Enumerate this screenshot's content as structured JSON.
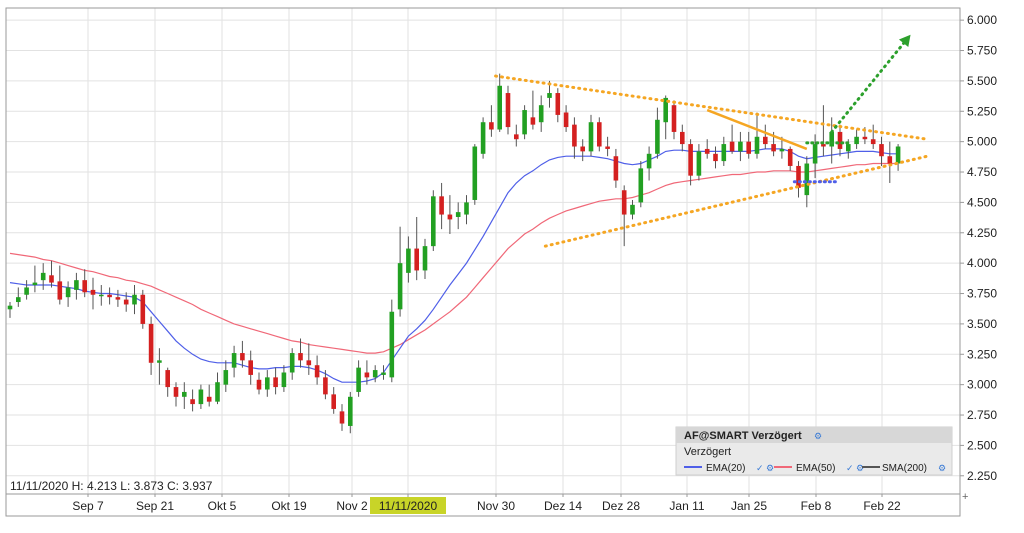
{
  "chart_data": {
    "type": "candlestick",
    "y_axis_position": "right",
    "ylim": [
      2.1,
      6.1
    ],
    "yticks": [
      "6.000",
      "5.750",
      "5.500",
      "5.250",
      "5.000",
      "4.750",
      "4.500",
      "4.250",
      "4.000",
      "3.750",
      "3.500",
      "3.250",
      "3.000",
      "2.750",
      "2.500",
      "2.250"
    ],
    "x_labels": [
      "Sep 7",
      "Sep 21",
      "Okt 5",
      "Okt 19",
      "Nov 2",
      "11/11/2020",
      "Nov 30",
      "Dez 14",
      "Dez 28",
      "Jan 11",
      "Jan 25",
      "Feb 8",
      "Feb 22"
    ],
    "highlighted_x_label": "11/11/2020",
    "grid": true,
    "colors": {
      "up": "#22a022",
      "down": "#d42020",
      "wick": "#555555",
      "ema20": "#4f5fe8",
      "ema50": "#f06878",
      "trendline": "#f5a623",
      "arrow": "#2ca02c",
      "highlight": "#c8d428"
    },
    "candles": [
      [
        3.62,
        3.68,
        3.55,
        3.65
      ],
      [
        3.68,
        3.8,
        3.64,
        3.72
      ],
      [
        3.74,
        3.86,
        3.7,
        3.8
      ],
      [
        3.82,
        3.98,
        3.76,
        3.84
      ],
      [
        3.86,
        4.0,
        3.78,
        3.92
      ],
      [
        3.9,
        4.02,
        3.8,
        3.84
      ],
      [
        3.85,
        3.98,
        3.66,
        3.7
      ],
      [
        3.72,
        3.85,
        3.64,
        3.8
      ],
      [
        3.78,
        3.92,
        3.7,
        3.86
      ],
      [
        3.86,
        3.95,
        3.72,
        3.76
      ],
      [
        3.78,
        3.88,
        3.62,
        3.74
      ],
      [
        3.74,
        3.82,
        3.65,
        3.74
      ],
      [
        3.74,
        3.8,
        3.66,
        3.72
      ],
      [
        3.72,
        3.78,
        3.64,
        3.7
      ],
      [
        3.7,
        3.76,
        3.6,
        3.66
      ],
      [
        3.66,
        3.82,
        3.58,
        3.74
      ],
      [
        3.74,
        3.78,
        3.46,
        3.5
      ],
      [
        3.5,
        3.56,
        3.08,
        3.18
      ],
      [
        3.18,
        3.3,
        3.0,
        3.2
      ],
      [
        3.12,
        3.14,
        2.9,
        2.98
      ],
      [
        2.98,
        3.02,
        2.82,
        2.9
      ],
      [
        2.9,
        3.02,
        2.8,
        2.94
      ],
      [
        2.88,
        2.96,
        2.78,
        2.84
      ],
      [
        2.84,
        3.0,
        2.8,
        2.96
      ],
      [
        2.9,
        3.0,
        2.82,
        2.86
      ],
      [
        2.86,
        3.1,
        2.84,
        3.02
      ],
      [
        3.0,
        3.2,
        2.94,
        3.12
      ],
      [
        3.14,
        3.32,
        3.06,
        3.26
      ],
      [
        3.26,
        3.36,
        3.14,
        3.2
      ],
      [
        3.2,
        3.28,
        3.0,
        3.08
      ],
      [
        3.04,
        3.1,
        2.92,
        2.96
      ],
      [
        2.96,
        3.12,
        2.9,
        3.06
      ],
      [
        3.06,
        3.14,
        2.92,
        2.98
      ],
      [
        2.98,
        3.16,
        2.94,
        3.1
      ],
      [
        3.1,
        3.3,
        3.04,
        3.26
      ],
      [
        3.26,
        3.38,
        3.14,
        3.2
      ],
      [
        3.2,
        3.34,
        3.08,
        3.16
      ],
      [
        3.16,
        3.24,
        3.0,
        3.06
      ],
      [
        3.06,
        3.12,
        2.88,
        2.92
      ],
      [
        2.92,
        2.98,
        2.76,
        2.8
      ],
      [
        2.78,
        2.84,
        2.62,
        2.68
      ],
      [
        2.66,
        2.94,
        2.6,
        2.9
      ],
      [
        2.94,
        3.2,
        2.9,
        3.14
      ],
      [
        3.1,
        3.2,
        3.0,
        3.06
      ],
      [
        3.06,
        3.16,
        3.02,
        3.12
      ],
      [
        3.08,
        3.16,
        3.04,
        3.1
      ],
      [
        3.06,
        3.7,
        3.02,
        3.6
      ],
      [
        3.62,
        4.3,
        3.56,
        4.0
      ],
      [
        3.92,
        4.22,
        3.84,
        4.12
      ],
      [
        4.12,
        4.38,
        3.86,
        3.94
      ],
      [
        3.94,
        4.2,
        3.87,
        4.14
      ],
      [
        4.14,
        4.6,
        4.1,
        4.55
      ],
      [
        4.55,
        4.66,
        4.28,
        4.4
      ],
      [
        4.4,
        4.56,
        4.24,
        4.36
      ],
      [
        4.38,
        4.5,
        4.28,
        4.42
      ],
      [
        4.4,
        4.56,
        4.32,
        4.5
      ],
      [
        4.52,
        4.98,
        4.48,
        4.96
      ],
      [
        4.9,
        5.2,
        4.86,
        5.16
      ],
      [
        5.16,
        5.3,
        5.04,
        5.1
      ],
      [
        5.1,
        5.56,
        5.08,
        5.46
      ],
      [
        5.4,
        5.46,
        5.06,
        5.12
      ],
      [
        5.06,
        5.14,
        4.96,
        5.02
      ],
      [
        5.06,
        5.3,
        5.02,
        5.26
      ],
      [
        5.2,
        5.42,
        5.1,
        5.14
      ],
      [
        5.16,
        5.38,
        5.08,
        5.3
      ],
      [
        5.36,
        5.5,
        5.28,
        5.4
      ],
      [
        5.4,
        5.44,
        5.16,
        5.22
      ],
      [
        5.24,
        5.3,
        5.08,
        5.12
      ],
      [
        5.14,
        5.2,
        4.86,
        4.96
      ],
      [
        4.96,
        5.02,
        4.84,
        4.92
      ],
      [
        4.92,
        5.22,
        4.88,
        5.16
      ],
      [
        5.16,
        5.2,
        4.92,
        4.96
      ],
      [
        4.96,
        5.04,
        4.88,
        4.94
      ],
      [
        4.88,
        4.94,
        4.62,
        4.68
      ],
      [
        4.6,
        4.64,
        4.14,
        4.4
      ],
      [
        4.4,
        4.52,
        4.36,
        4.48
      ],
      [
        4.5,
        4.84,
        4.46,
        4.78
      ],
      [
        4.78,
        4.96,
        4.68,
        4.9
      ],
      [
        4.9,
        5.28,
        4.86,
        5.18
      ],
      [
        5.16,
        5.38,
        5.02,
        5.36
      ],
      [
        5.3,
        5.34,
        5.02,
        5.08
      ],
      [
        5.08,
        5.14,
        4.92,
        4.98
      ],
      [
        4.98,
        5.02,
        4.64,
        4.72
      ],
      [
        4.72,
        4.98,
        4.68,
        4.92
      ],
      [
        4.94,
        5.02,
        4.86,
        4.9
      ],
      [
        4.9,
        4.96,
        4.78,
        4.84
      ],
      [
        4.84,
        5.04,
        4.8,
        4.98
      ],
      [
        5.0,
        5.14,
        4.9,
        4.92
      ],
      [
        4.92,
        5.08,
        4.84,
        5.0
      ],
      [
        5.0,
        5.08,
        4.86,
        4.9
      ],
      [
        4.9,
        5.24,
        4.86,
        5.04
      ],
      [
        5.04,
        5.14,
        4.94,
        4.98
      ],
      [
        4.98,
        5.08,
        4.88,
        4.92
      ],
      [
        4.92,
        5.04,
        4.86,
        4.94
      ],
      [
        4.94,
        4.96,
        4.76,
        4.8
      ],
      [
        4.8,
        4.84,
        4.54,
        4.62
      ],
      [
        4.56,
        4.88,
        4.46,
        4.82
      ],
      [
        4.82,
        5.06,
        4.7,
        4.98
      ],
      [
        4.98,
        5.3,
        4.88,
        4.96
      ],
      [
        4.96,
        5.2,
        4.82,
        5.08
      ],
      [
        5.08,
        5.14,
        4.88,
        4.94
      ],
      [
        4.92,
        5.02,
        4.86,
        4.98
      ],
      [
        4.98,
        5.1,
        4.94,
        5.04
      ],
      [
        5.04,
        5.12,
        4.98,
        5.02
      ],
      [
        5.02,
        5.14,
        4.94,
        4.98
      ],
      [
        4.98,
        5.04,
        4.8,
        4.88
      ],
      [
        4.88,
        5.0,
        4.66,
        4.82
      ],
      [
        4.82,
        4.98,
        4.76,
        4.96
      ]
    ],
    "ema20": [
      3.84,
      3.83,
      3.82,
      3.82,
      3.82,
      3.82,
      3.81,
      3.8,
      3.79,
      3.77,
      3.76,
      3.75,
      3.75,
      3.74,
      3.73,
      3.72,
      3.68,
      3.6,
      3.52,
      3.44,
      3.36,
      3.3,
      3.25,
      3.21,
      3.19,
      3.18,
      3.18,
      3.18,
      3.16,
      3.14,
      3.13,
      3.13,
      3.14,
      3.14,
      3.15,
      3.15,
      3.14,
      3.12,
      3.09,
      3.05,
      3.02,
      3.02,
      3.02,
      3.03,
      3.05,
      3.1,
      3.2,
      3.3,
      3.4,
      3.46,
      3.53,
      3.62,
      3.72,
      3.82,
      3.91,
      4.0,
      4.11,
      4.22,
      4.34,
      4.46,
      4.58,
      4.66,
      4.72,
      4.76,
      4.81,
      4.85,
      4.87,
      4.88,
      4.88,
      4.88,
      4.88,
      4.87,
      4.86,
      4.84,
      4.82,
      4.81,
      4.82,
      4.85,
      4.88,
      4.92,
      4.93,
      4.93,
      4.92,
      4.92,
      4.92,
      4.92,
      4.92,
      4.92,
      4.92,
      4.92,
      4.93,
      4.94,
      4.94,
      4.94,
      4.92,
      4.88,
      4.86,
      4.87,
      4.88,
      4.89,
      4.9,
      4.91,
      4.92,
      4.92,
      4.92,
      4.91,
      4.9,
      4.9
    ],
    "ema50": [
      4.08,
      4.07,
      4.06,
      4.05,
      4.03,
      4.02,
      4.0,
      3.98,
      3.96,
      3.94,
      3.93,
      3.91,
      3.89,
      3.88,
      3.86,
      3.85,
      3.83,
      3.81,
      3.78,
      3.75,
      3.72,
      3.69,
      3.66,
      3.62,
      3.59,
      3.56,
      3.53,
      3.5,
      3.48,
      3.46,
      3.44,
      3.42,
      3.4,
      3.38,
      3.36,
      3.35,
      3.33,
      3.32,
      3.31,
      3.3,
      3.29,
      3.28,
      3.27,
      3.26,
      3.26,
      3.27,
      3.3,
      3.33,
      3.37,
      3.41,
      3.45,
      3.5,
      3.55,
      3.6,
      3.66,
      3.72,
      3.8,
      3.88,
      3.96,
      4.04,
      4.12,
      4.18,
      4.24,
      4.28,
      4.33,
      4.37,
      4.4,
      4.43,
      4.45,
      4.47,
      4.49,
      4.51,
      4.52,
      4.53,
      4.53,
      4.54,
      4.56,
      4.58,
      4.61,
      4.64,
      4.66,
      4.67,
      4.68,
      4.69,
      4.7,
      4.71,
      4.72,
      4.73,
      4.73,
      4.74,
      4.75,
      4.75,
      4.76,
      4.76,
      4.76,
      4.75,
      4.75,
      4.76,
      4.77,
      4.78,
      4.79,
      4.8,
      4.81,
      4.81,
      4.82,
      4.82,
      4.82,
      4.82
    ],
    "annotations": {
      "triangle_upper": [
        [
          58.5,
          5.54
        ],
        [
          110.5,
          5.02
        ]
      ],
      "triangle_lower": [
        [
          64.5,
          4.14
        ],
        [
          110.5,
          4.88
        ]
      ],
      "orange_solid": [
        [
          84.0,
          5.26
        ],
        [
          96.0,
          4.94
        ]
      ],
      "green_dotted_level": [
        [
          96.0,
          4.99
        ],
        [
          101.0,
          4.99
        ]
      ],
      "blue_dotted_level": [
        [
          94.5,
          4.67
        ],
        [
          99.5,
          4.67
        ]
      ],
      "green_arrow": [
        [
          99.0,
          5.08
        ],
        [
          108.5,
          5.88
        ]
      ]
    },
    "legend": {
      "title": "AF@SMART Verzögert",
      "subtitle": "Verzögert",
      "entries": [
        "EMA(20)",
        "EMA(50)",
        "SMA(200)"
      ]
    },
    "info_text": "11/11/2020  H: 4.213  L: 3.873  C: 3.937"
  }
}
